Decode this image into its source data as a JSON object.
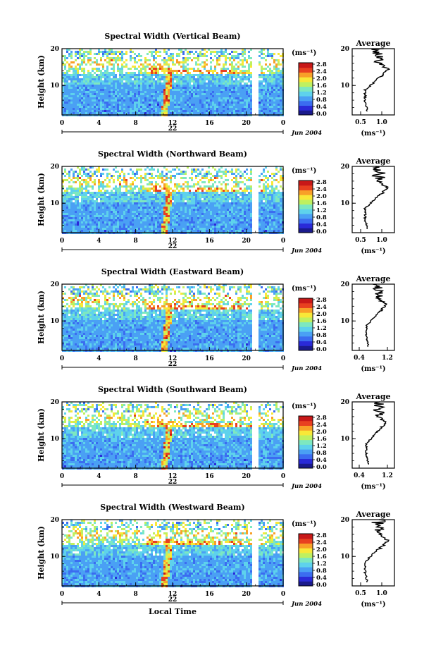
{
  "chart_data": [
    {
      "type": "heatmap",
      "title": "Spectral Width (Vertical Beam)",
      "ylabel": "Height (km)",
      "xticks": [
        "0",
        "4",
        "8",
        "12",
        "16",
        "20",
        "0"
      ],
      "yticks": [
        "20",
        "10"
      ],
      "xlim": [
        0,
        24
      ],
      "ylim": [
        2,
        20
      ],
      "day_label": "22",
      "date_label": "Jun 2004",
      "colorbar": {
        "unit": "(ms⁻¹)",
        "ticks": [
          "2.8",
          "2.4",
          "2.0",
          "1.6",
          "1.2",
          "0.8",
          "0.4",
          "0.0"
        ],
        "range": [
          0.0,
          2.8
        ]
      },
      "average": {
        "title": "Average",
        "xlabel": "(ms⁻¹)",
        "xticks": [
          "0.5",
          "1.0"
        ],
        "xtick_values": [
          0.5,
          1.0
        ],
        "xlim": [
          0.3,
          1.3
        ],
        "yticks": [
          "20",
          "10"
        ]
      }
    },
    {
      "type": "heatmap",
      "title": "Spectral Width (Northward Beam)",
      "ylabel": "Height (km)",
      "xticks": [
        "0",
        "4",
        "8",
        "12",
        "16",
        "20",
        "0"
      ],
      "yticks": [
        "20",
        "10"
      ],
      "xlim": [
        0,
        24
      ],
      "ylim": [
        2,
        20
      ],
      "day_label": "22",
      "date_label": "Jun 2004",
      "colorbar": {
        "unit": "(ms⁻¹)",
        "ticks": [
          "2.8",
          "2.4",
          "2.0",
          "1.6",
          "1.2",
          "0.8",
          "0.4",
          "0.0"
        ],
        "range": [
          0.0,
          2.8
        ]
      },
      "average": {
        "title": "Average",
        "xlabel": "(ms⁻¹)",
        "xticks": [
          "0.5",
          "1.0"
        ],
        "xtick_values": [
          0.5,
          1.0
        ],
        "xlim": [
          0.3,
          1.3
        ],
        "yticks": [
          "20",
          "10"
        ]
      }
    },
    {
      "type": "heatmap",
      "title": "Spectral Width (Eastward Beam)",
      "ylabel": "Height (km)",
      "xticks": [
        "0",
        "4",
        "8",
        "12",
        "16",
        "20",
        "0"
      ],
      "yticks": [
        "20",
        "10"
      ],
      "xlim": [
        0,
        24
      ],
      "ylim": [
        2,
        20
      ],
      "day_label": "22",
      "date_label": "Jun 2004",
      "colorbar": {
        "unit": "(ms⁻¹)",
        "ticks": [
          "2.8",
          "2.4",
          "2.0",
          "1.6",
          "1.2",
          "0.8",
          "0.4",
          "0.0"
        ],
        "range": [
          0.0,
          2.8
        ]
      },
      "average": {
        "title": "Average",
        "xlabel": "(ms⁻¹)",
        "xticks": [
          "0.4",
          "1.2"
        ],
        "xtick_values": [
          0.4,
          1.2
        ],
        "xlim": [
          0.2,
          1.4
        ],
        "yticks": [
          "20",
          "10"
        ]
      }
    },
    {
      "type": "heatmap",
      "title": "Spectral Width (Southward Beam)",
      "ylabel": "Height (km)",
      "xticks": [
        "0",
        "4",
        "8",
        "12",
        "16",
        "20",
        "0"
      ],
      "yticks": [
        "20",
        "10"
      ],
      "xlim": [
        0,
        24
      ],
      "ylim": [
        2,
        20
      ],
      "day_label": "22",
      "date_label": "Jun 2004",
      "colorbar": {
        "unit": "(ms⁻¹)",
        "ticks": [
          "2.8",
          "2.4",
          "2.0",
          "1.6",
          "1.2",
          "0.8",
          "0.4",
          "0.0"
        ],
        "range": [
          0.0,
          2.8
        ]
      },
      "average": {
        "title": "Average",
        "xlabel": "(ms⁻¹)",
        "xticks": [
          "0.4",
          "1.2"
        ],
        "xtick_values": [
          0.4,
          1.2
        ],
        "xlim": [
          0.2,
          1.4
        ],
        "yticks": [
          "20",
          "10"
        ]
      }
    },
    {
      "type": "heatmap",
      "title": "Spectral Width (Westward Beam)",
      "ylabel": "Height (km)",
      "xticks": [
        "0",
        "4",
        "8",
        "12",
        "16",
        "20",
        "0"
      ],
      "yticks": [
        "20",
        "10"
      ],
      "xlim": [
        0,
        24
      ],
      "ylim": [
        2,
        20
      ],
      "day_label": "22",
      "date_label": "Jun 2004",
      "xlabel": "Local Time",
      "colorbar": {
        "unit": "(ms⁻¹)",
        "ticks": [
          "2.8",
          "2.4",
          "2.0",
          "1.6",
          "1.2",
          "0.8",
          "0.4",
          "0.0"
        ],
        "range": [
          0.0,
          2.8
        ]
      },
      "average": {
        "title": "Average",
        "xlabel": "(ms⁻¹)",
        "xticks": [
          "0.5",
          "1.0"
        ],
        "xtick_values": [
          0.5,
          1.0
        ],
        "xlim": [
          0.3,
          1.3
        ],
        "yticks": [
          "20",
          "10"
        ]
      }
    }
  ],
  "colors": {
    "scale": [
      "#1a1a8c",
      "#2a2ad8",
      "#3b6cf0",
      "#4aa0f4",
      "#5ed2ec",
      "#7de8c0",
      "#bff060",
      "#f8e838",
      "#f8a028",
      "#e84020",
      "#c81818"
    ]
  }
}
